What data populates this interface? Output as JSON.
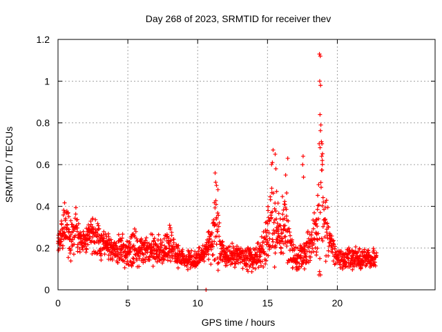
{
  "chart_data": {
    "type": "scatter",
    "title": "Day 268 of 2023, SRMTID for receiver thev",
    "xlabel": "GPS time / hours",
    "ylabel": "SRMTID / TECUs",
    "xlim": [
      0,
      27
    ],
    "ylim": [
      0,
      1.2
    ],
    "x_ticks": [
      "0",
      "5",
      "10",
      "15",
      "20"
    ],
    "x_tick_values": [
      0,
      5,
      10,
      15,
      20
    ],
    "y_ticks": [
      "0",
      "0.2",
      "0.4",
      "0.6",
      "0.8",
      "1",
      "1.2"
    ],
    "y_tick_values": [
      0,
      0.2,
      0.4,
      0.6,
      0.8,
      1.0,
      1.2
    ],
    "grid": true,
    "marker": "plus",
    "color": "#ff0000",
    "series": [
      {
        "name": "SRMTID",
        "profile_x": [
          0,
          0.5,
          0.9,
          1.3,
          1.6,
          2.0,
          2.5,
          3.0,
          3.5,
          4.0,
          4.5,
          5.0,
          5.5,
          6.0,
          6.5,
          7.0,
          7.5,
          8.0,
          8.5,
          9.0,
          9.5,
          10.0,
          10.5,
          11.0,
          11.3,
          11.6,
          12.0,
          12.5,
          13.0,
          13.5,
          14.0,
          14.5,
          15.0,
          15.3,
          15.6,
          16.0,
          16.3,
          16.6,
          17.0,
          17.5,
          18.0,
          18.5,
          18.8,
          19.1,
          19.5,
          20.0,
          20.5,
          21.0,
          21.5,
          22.0,
          22.8
        ],
        "profile_center": [
          0.22,
          0.3,
          0.26,
          0.3,
          0.22,
          0.24,
          0.26,
          0.24,
          0.22,
          0.2,
          0.2,
          0.18,
          0.2,
          0.18,
          0.2,
          0.18,
          0.2,
          0.22,
          0.18,
          0.14,
          0.14,
          0.15,
          0.17,
          0.22,
          0.3,
          0.2,
          0.16,
          0.17,
          0.16,
          0.15,
          0.15,
          0.18,
          0.25,
          0.35,
          0.3,
          0.28,
          0.3,
          0.2,
          0.15,
          0.16,
          0.2,
          0.28,
          0.45,
          0.3,
          0.22,
          0.16,
          0.15,
          0.16,
          0.14,
          0.15,
          0.16
        ],
        "profile_spread": [
          0.04,
          0.1,
          0.1,
          0.12,
          0.06,
          0.06,
          0.08,
          0.08,
          0.06,
          0.06,
          0.08,
          0.06,
          0.08,
          0.06,
          0.08,
          0.06,
          0.06,
          0.08,
          0.06,
          0.04,
          0.04,
          0.04,
          0.05,
          0.08,
          0.22,
          0.06,
          0.04,
          0.05,
          0.05,
          0.05,
          0.05,
          0.06,
          0.12,
          0.25,
          0.2,
          0.12,
          0.2,
          0.08,
          0.05,
          0.06,
          0.08,
          0.12,
          0.45,
          0.18,
          0.08,
          0.05,
          0.05,
          0.05,
          0.05,
          0.05,
          0.05
        ],
        "outliers": [
          [
            18.72,
            1.13
          ],
          [
            18.78,
            1.12
          ],
          [
            18.74,
            1.0
          ],
          [
            18.8,
            0.98
          ],
          [
            18.76,
            0.84
          ],
          [
            18.82,
            0.79
          ],
          [
            18.7,
            0.7
          ],
          [
            18.88,
            0.64
          ],
          [
            18.92,
            0.62
          ],
          [
            15.4,
            0.67
          ],
          [
            15.55,
            0.65
          ],
          [
            15.35,
            0.61
          ],
          [
            15.6,
            0.58
          ],
          [
            16.45,
            0.63
          ],
          [
            16.3,
            0.55
          ],
          [
            17.55,
            0.64
          ],
          [
            17.52,
            0.6
          ],
          [
            17.58,
            0.54
          ],
          [
            11.25,
            0.56
          ],
          [
            11.35,
            0.5
          ],
          [
            11.45,
            0.48
          ],
          [
            10.6,
            0.0
          ]
        ],
        "seed": 268
      }
    ]
  }
}
